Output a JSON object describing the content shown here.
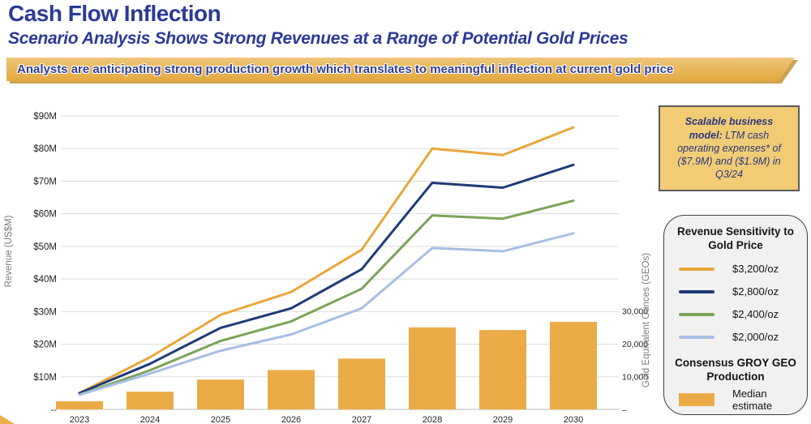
{
  "header": {
    "title": "Cash Flow Inflection",
    "subtitle": "Scenario Analysis Shows Strong Revenues at a Range of Potential Gold Prices"
  },
  "banner": {
    "text": "Analysts are anticipating strong production growth which translates to meaningful inflection at current gold price"
  },
  "callout": {
    "lead": "Scalable business model:",
    "rest": " LTM cash operating expenses* of ($7.9M) and ($1.9M) in Q3/24"
  },
  "legend": {
    "title": "Revenue Sensitivity to Gold Price",
    "section_title": "Consensus GROY GEO Production"
  },
  "chart_data": {
    "type": "combo",
    "categories": [
      "2023",
      "2024",
      "2025",
      "2026",
      "2027",
      "2028",
      "2029",
      "2030"
    ],
    "line_series": [
      {
        "name": "$3,200/oz",
        "color": "#E8A63C",
        "values": [
          5,
          16,
          29,
          36,
          49,
          80,
          78,
          86.5
        ]
      },
      {
        "name": "$2,800/oz",
        "color": "#1E3B76",
        "values": [
          5,
          14,
          25,
          31,
          43,
          69.5,
          68,
          75
        ]
      },
      {
        "name": "$2,400/oz",
        "color": "#7AA458",
        "values": [
          4.5,
          12,
          21,
          27,
          37,
          59.5,
          58.5,
          64
        ]
      },
      {
        "name": "$2,000/oz",
        "color": "#A7BEE4",
        "values": [
          4.5,
          11,
          18,
          23,
          31,
          49.5,
          48.5,
          54
        ]
      }
    ],
    "bar_series": {
      "name": "Median estimate",
      "color": "#EAAB47",
      "axis": "right",
      "values": [
        2500,
        5400,
        9100,
        12000,
        15500,
        25000,
        24200,
        26700
      ]
    },
    "left_axis": {
      "title": "Revenue (US$M)",
      "tick_values": [
        10,
        20,
        30,
        40,
        50,
        60,
        70,
        80,
        90
      ],
      "tick_labels": [
        "$10M",
        "$20M",
        "$30M",
        "$40M",
        "$50M",
        "$60M",
        "$70M",
        "$80M",
        "$90M"
      ],
      "zero_label": "--",
      "range": [
        0,
        92
      ]
    },
    "right_axis": {
      "title": "Gold Equivalent Ounces (GEOs)",
      "tick_values": [
        10000,
        20000,
        30000
      ],
      "tick_labels": [
        "10,000",
        "20,000",
        "30,000"
      ],
      "zero_label": "–",
      "range": [
        0,
        32000
      ]
    },
    "grid": true,
    "legend_position": "right"
  }
}
